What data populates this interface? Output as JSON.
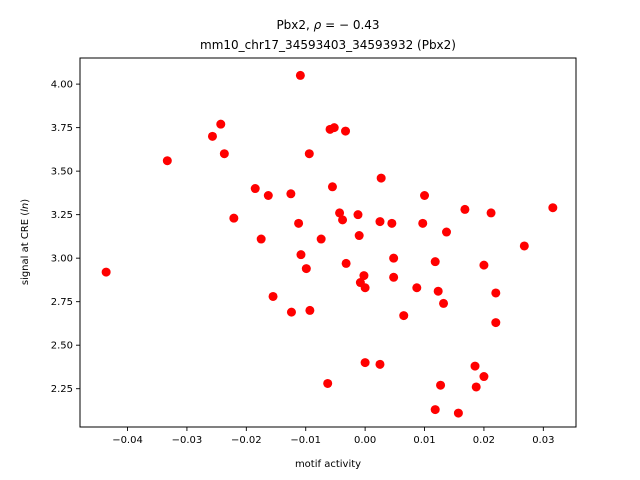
{
  "chart_data": {
    "type": "scatter",
    "title_line1": "Pbx2, ρ = − 0.43",
    "title_line2": "mm10_chr17_34593403_34593932 (Pbx2)",
    "xlabel": "motif activity",
    "ylabel": "signal at CRE (ln)",
    "xlim": [
      -0.048,
      0.0355
    ],
    "ylim": [
      2.03,
      4.15
    ],
    "xticks": [
      -0.04,
      -0.03,
      -0.02,
      -0.01,
      0.0,
      0.01,
      0.02,
      0.03
    ],
    "xtick_labels": [
      "−0.04",
      "−0.03",
      "−0.02",
      "−0.01",
      "0.00",
      "0.01",
      "0.02",
      "0.03"
    ],
    "yticks": [
      2.25,
      2.5,
      2.75,
      3.0,
      3.25,
      3.5,
      3.75,
      4.0
    ],
    "ytick_labels": [
      "2.25",
      "2.50",
      "2.75",
      "3.00",
      "3.25",
      "3.50",
      "3.75",
      "4.00"
    ],
    "grid": false,
    "marker_color": "#ff0000",
    "points": [
      [
        -0.0436,
        2.92
      ],
      [
        -0.0333,
        3.56
      ],
      [
        -0.0257,
        3.7
      ],
      [
        -0.0243,
        3.77
      ],
      [
        -0.0237,
        3.6
      ],
      [
        -0.0221,
        3.23
      ],
      [
        -0.0185,
        3.4
      ],
      [
        -0.0175,
        3.11
      ],
      [
        -0.0163,
        3.36
      ],
      [
        -0.0155,
        2.78
      ],
      [
        -0.0125,
        3.37
      ],
      [
        -0.0124,
        2.69
      ],
      [
        -0.0112,
        3.2
      ],
      [
        -0.0109,
        4.05
      ],
      [
        -0.0108,
        3.02
      ],
      [
        -0.0099,
        2.94
      ],
      [
        -0.0094,
        3.6
      ],
      [
        -0.0093,
        2.7
      ],
      [
        -0.0074,
        3.11
      ],
      [
        -0.0063,
        2.28
      ],
      [
        -0.0059,
        3.74
      ],
      [
        -0.0055,
        3.41
      ],
      [
        -0.0052,
        3.75
      ],
      [
        -0.0043,
        3.26
      ],
      [
        -0.0038,
        3.22
      ],
      [
        -0.0033,
        3.73
      ],
      [
        -0.0032,
        2.97
      ],
      [
        -0.0012,
        3.25
      ],
      [
        -0.001,
        3.13
      ],
      [
        -0.0008,
        2.86
      ],
      [
        -0.0002,
        2.9
      ],
      [
        0.0,
        2.83
      ],
      [
        0.0,
        2.4
      ],
      [
        0.0025,
        3.21
      ],
      [
        0.0025,
        2.39
      ],
      [
        0.0027,
        3.46
      ],
      [
        0.0045,
        3.2
      ],
      [
        0.0048,
        3.0
      ],
      [
        0.0048,
        2.89
      ],
      [
        0.0065,
        2.67
      ],
      [
        0.0087,
        2.83
      ],
      [
        0.0097,
        3.2
      ],
      [
        0.01,
        3.36
      ],
      [
        0.0118,
        2.98
      ],
      [
        0.0118,
        2.13
      ],
      [
        0.0123,
        2.81
      ],
      [
        0.0127,
        2.27
      ],
      [
        0.0132,
        2.74
      ],
      [
        0.0137,
        3.15
      ],
      [
        0.0157,
        2.11
      ],
      [
        0.0168,
        3.28
      ],
      [
        0.0185,
        2.38
      ],
      [
        0.0187,
        2.26
      ],
      [
        0.02,
        2.96
      ],
      [
        0.02,
        2.32
      ],
      [
        0.0212,
        3.26
      ],
      [
        0.022,
        2.8
      ],
      [
        0.022,
        2.63
      ],
      [
        0.0268,
        3.07
      ],
      [
        0.0316,
        3.29
      ]
    ]
  }
}
